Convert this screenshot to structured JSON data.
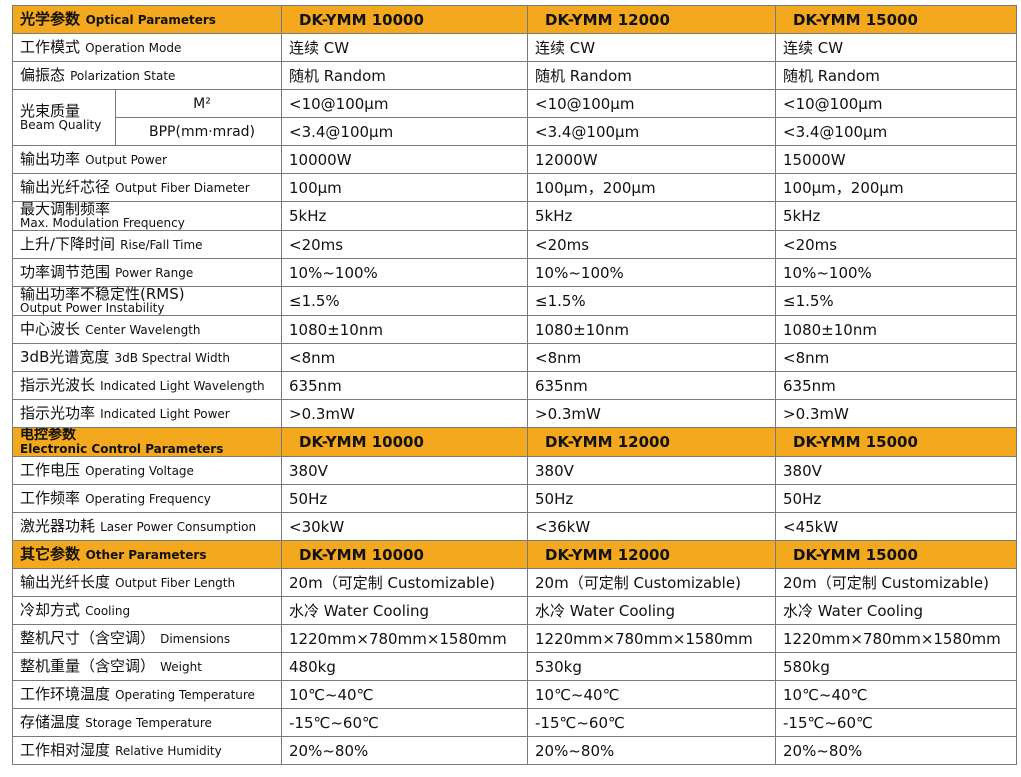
{
  "models": [
    "DK-YMM 10000",
    "DK-YMM 12000",
    "DK-YMM 15000"
  ],
  "sections": {
    "optical": {
      "zh": "光学参数",
      "en": "Optical Parameters"
    },
    "electronic": {
      "zh": "电控参数",
      "en": "Electronic Control Parameters"
    },
    "other": {
      "zh": "其它参数",
      "en": "Other Parameters"
    }
  },
  "beam_quality": {
    "zh": "光束质量",
    "en": "Beam Quality",
    "m2": {
      "label": "M²",
      "values": [
        "<10@100μm",
        "<10@100μm",
        "<10@100μm"
      ]
    },
    "bpp": {
      "label": "BPP(mm·mrad)",
      "values": [
        "<3.4@100μm",
        "<3.4@100μm",
        "<3.4@100μm"
      ]
    }
  },
  "optical_rows": [
    {
      "zh": "工作模式",
      "en": "Operation Mode",
      "values": [
        "连续  CW",
        "连续  CW",
        "连续  CW"
      ]
    },
    {
      "zh": "偏振态",
      "en": "Polarization State",
      "values": [
        "随机  Random",
        "随机  Random",
        "随机  Random"
      ]
    },
    {
      "zh": "输出功率",
      "en": "Output Power",
      "values": [
        "10000W",
        "12000W",
        "15000W"
      ]
    },
    {
      "zh": "输出光纤芯径",
      "en": "Output Fiber Diameter",
      "values": [
        "100μm",
        "100μm，200μm",
        "100μm，200μm"
      ]
    },
    {
      "zh": "最大调制频率",
      "en": "Max. Modulation Frequency",
      "values": [
        "5kHz",
        "5kHz",
        "5kHz"
      ]
    },
    {
      "zh": "上升/下降时间",
      "en": "Rise/Fall Time",
      "values": [
        "<20ms",
        "<20ms",
        "<20ms"
      ]
    },
    {
      "zh": "功率调节范围",
      "en": "Power Range",
      "values": [
        "10%~100%",
        "10%~100%",
        "10%~100%"
      ]
    },
    {
      "zh": "输出功率不稳定性(RMS)",
      "en": "Output Power Instability",
      "values": [
        "≤1.5%",
        "≤1.5%",
        "≤1.5%"
      ]
    },
    {
      "zh": "中心波长",
      "en": "Center Wavelength",
      "values": [
        "1080±10nm",
        "1080±10nm",
        "1080±10nm"
      ]
    },
    {
      "zh": "3dB光谱宽度",
      "en": "3dB Spectral Width",
      "values": [
        "<8nm",
        "<8nm",
        "<8nm"
      ]
    },
    {
      "zh": "指示光波长",
      "en": "Indicated Light Wavelength",
      "values": [
        "635nm",
        "635nm",
        "635nm"
      ]
    },
    {
      "zh": "指示光功率",
      "en": "Indicated Light Power",
      "values": [
        ">0.3mW",
        ">0.3mW",
        ">0.3mW"
      ]
    }
  ],
  "electronic_rows": [
    {
      "zh": "工作电压",
      "en": "Operating Voltage",
      "values": [
        "380V",
        "380V",
        "380V"
      ]
    },
    {
      "zh": "工作频率",
      "en": "Operating Frequency",
      "values": [
        "50Hz",
        "50Hz",
        "50Hz"
      ]
    },
    {
      "zh": "激光器功耗",
      "en": "Laser Power Consumption",
      "values": [
        "<30kW",
        "<36kW",
        "<45kW"
      ]
    }
  ],
  "other_rows": [
    {
      "zh": "输出光纤长度",
      "en": "Output Fiber Length",
      "values": [
        "20m（可定制 Customizable)",
        "20m（可定制 Customizable)",
        "20m（可定制 Customizable)"
      ]
    },
    {
      "zh": "冷却方式",
      "en": "Cooling",
      "values": [
        "水冷  Water Cooling",
        "水冷  Water Cooling",
        "水冷  Water Cooling"
      ]
    },
    {
      "zh": "整机尺寸（含空调）",
      "en": "Dimensions",
      "values": [
        "1220mm×780mm×1580mm",
        "1220mm×780mm×1580mm",
        "1220mm×780mm×1580mm"
      ]
    },
    {
      "zh": "整机重量（含空调）",
      "en": "Weight",
      "values": [
        "480kg",
        "530kg",
        "580kg"
      ]
    },
    {
      "zh": "工作环境温度",
      "en": "Operating Temperature",
      "values": [
        "10℃~40℃",
        "10℃~40℃",
        "10℃~40℃"
      ]
    },
    {
      "zh": "存储温度",
      "en": "Storage Temperature",
      "values": [
        "-15℃~60℃",
        "-15℃~60℃",
        "-15℃~60℃"
      ]
    },
    {
      "zh": "工作相对湿度",
      "en": "Relative Humidity",
      "values": [
        "20%~80%",
        "20%~80%",
        "20%~80%"
      ]
    }
  ],
  "colors": {
    "section_header_bg": "#f4a81d",
    "border": "#7a7a7a"
  }
}
